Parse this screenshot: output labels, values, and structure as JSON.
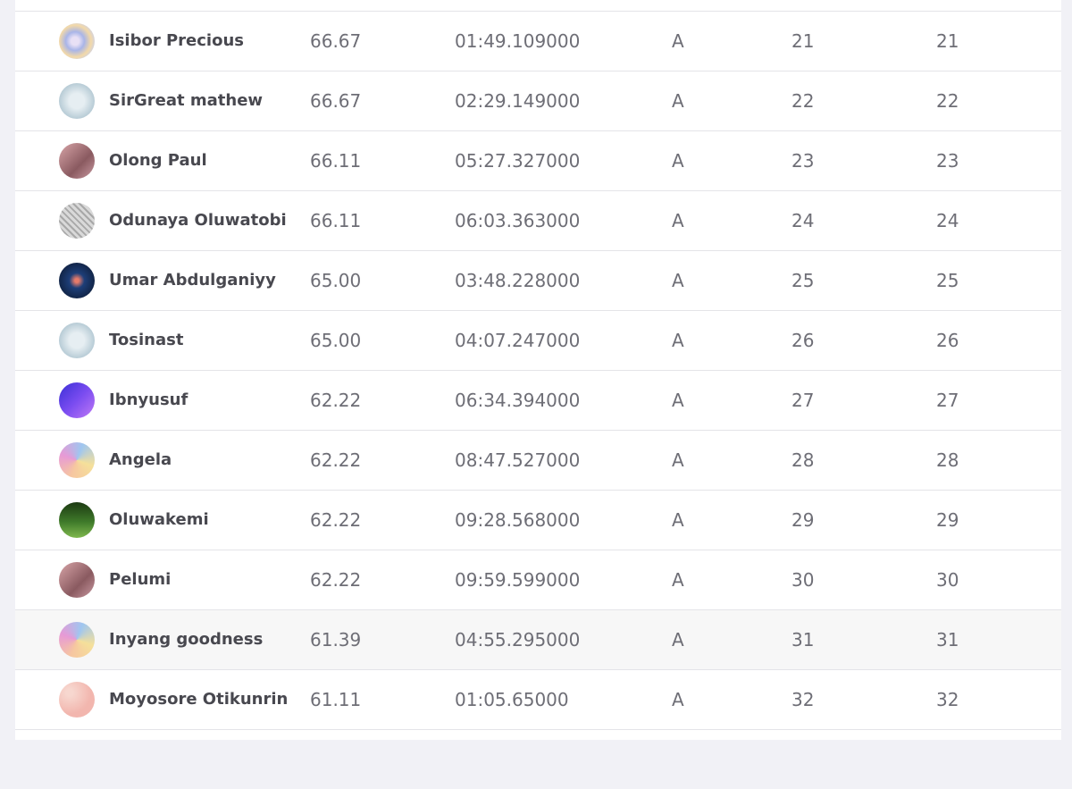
{
  "table": {
    "rows": [
      [
        "Isibor Precious",
        "66.67",
        "01:49.109000",
        "A",
        "21",
        "21"
      ],
      [
        "SirGreat mathew",
        "66.67",
        "02:29.149000",
        "A",
        "22",
        "22"
      ],
      [
        "Olong Paul",
        "66.11",
        "05:27.327000",
        "A",
        "23",
        "23"
      ],
      [
        "Odunaya Oluwatobi",
        "66.11",
        "06:03.363000",
        "A",
        "24",
        "24"
      ],
      [
        "Umar Abdulganiyy",
        "65.00",
        "03:48.228000",
        "A",
        "25",
        "25"
      ],
      [
        "Tosinast",
        "65.00",
        "04:07.247000",
        "A",
        "26",
        "26"
      ],
      [
        "Ibnyusuf",
        "62.22",
        "06:34.394000",
        "A",
        "27",
        "27"
      ],
      [
        "Angela",
        "62.22",
        "08:47.527000",
        "A",
        "28",
        "28"
      ],
      [
        "Oluwakemi",
        "62.22",
        "09:28.568000",
        "A",
        "29",
        "29"
      ],
      [
        "Pelumi",
        "62.22",
        "09:59.599000",
        "A",
        "30",
        "30"
      ],
      [
        "Inyang goodness",
        "61.39",
        "04:55.295000",
        "A",
        "31",
        "31"
      ],
      [
        "Moyosore Otikunrin",
        "61.11",
        "01:05.65000",
        "A",
        "32",
        "32"
      ]
    ],
    "highlighted_row": 10
  }
}
